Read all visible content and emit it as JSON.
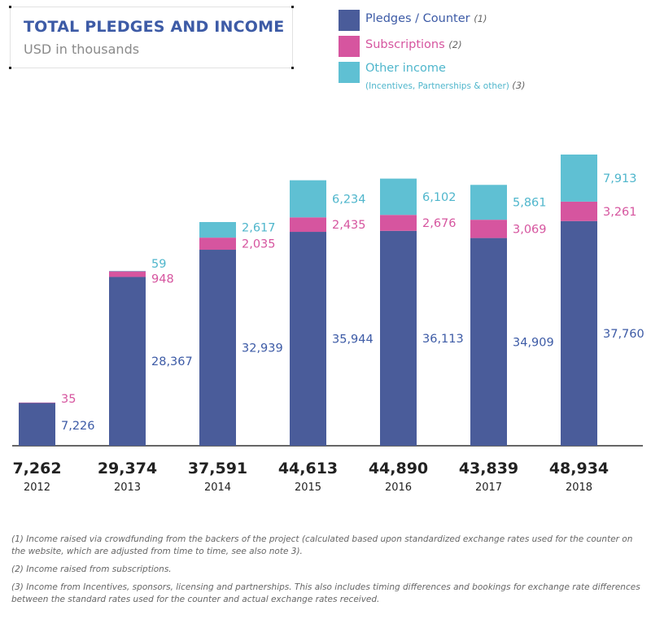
{
  "header": {
    "title": "TOTAL PLEDGES AND INCOME",
    "subtitle": "USD in thousands"
  },
  "legend": [
    {
      "label": "Pledges / Counter",
      "note": "(1)",
      "sub": "",
      "color": "#4a5c9a"
    },
    {
      "label": "Subscriptions",
      "note": "(2)",
      "sub": "",
      "color": "#d6559f"
    },
    {
      "label": "Other income",
      "note": "(3)",
      "sub": "(Incentives, Partnerships & other)",
      "color": "#5fc0d3"
    }
  ],
  "colors": {
    "pledges": "#4a5c9a",
    "pledges_label": "#3d5ba6",
    "subscriptions": "#d6559f",
    "other": "#5fc0d3",
    "other_label": "#4fb6cc",
    "totals": "#222222",
    "axis": "#333333"
  },
  "chart_data": {
    "type": "bar",
    "stacked": true,
    "categories": [
      "2012",
      "2013",
      "2014",
      "2015",
      "2016",
      "2017",
      "2018"
    ],
    "series": [
      {
        "name": "Pledges / Counter",
        "values": [
          7226,
          28367,
          32939,
          35944,
          36113,
          34909,
          37760
        ]
      },
      {
        "name": "Subscriptions",
        "values": [
          35,
          948,
          2035,
          2435,
          2676,
          3069,
          3261
        ]
      },
      {
        "name": "Other income",
        "values": [
          null,
          59,
          2617,
          6234,
          6102,
          5861,
          7913
        ]
      }
    ],
    "value_labels": [
      [
        "7,226",
        "28,367",
        "32,939",
        "35,944",
        "36,113",
        "34,909",
        "37,760"
      ],
      [
        "35",
        "948",
        "2,035",
        "2,435",
        "2,676",
        "3,069",
        "3,261"
      ],
      [
        "",
        "59",
        "2,617",
        "6,234",
        "6,102",
        "5,861",
        "7,913"
      ]
    ],
    "totals": [
      "7,262",
      "29,374",
      "37,591",
      "44,613",
      "44,890",
      "43,839",
      "48,934"
    ],
    "ylim": [
      0,
      48934
    ],
    "grid": false,
    "legend_position": "top-right"
  },
  "footnotes": [
    "(1)   Income raised via crowdfunding from the backers of the project (calculated based upon standardized exchange rates used for the counter on the website, which are adjusted from time to time, see also note 3).",
    "(2)   Income raised from subscriptions.",
    "(3)   Income from Incentives, sponsors, licensing and partnerships. This also includes timing differences and bookings for exchange rate differences between the standard rates used for the counter and actual exchange rates received."
  ]
}
